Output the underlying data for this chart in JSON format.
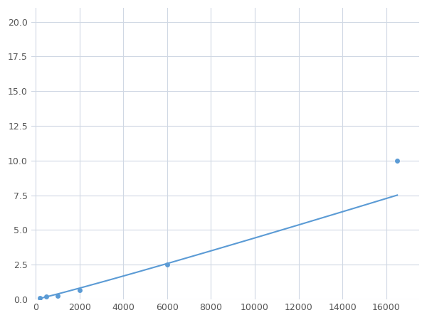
{
  "x": [
    200,
    500,
    1000,
    2000,
    6000,
    16500
  ],
  "y": [
    0.1,
    0.2,
    0.25,
    0.65,
    2.5,
    10.0
  ],
  "line_color": "#5b9bd5",
  "marker_color": "#5b9bd5",
  "marker_size": 5,
  "xlim": [
    -200,
    17500
  ],
  "ylim": [
    0,
    21
  ],
  "xticks": [
    0,
    2000,
    4000,
    6000,
    8000,
    10000,
    12000,
    14000,
    16000
  ],
  "yticks": [
    0.0,
    2.5,
    5.0,
    7.5,
    10.0,
    12.5,
    15.0,
    17.5,
    20.0
  ],
  "grid_color": "#d0d8e4",
  "background_color": "#ffffff",
  "figure_width": 6.0,
  "figure_height": 4.5,
  "dpi": 100
}
